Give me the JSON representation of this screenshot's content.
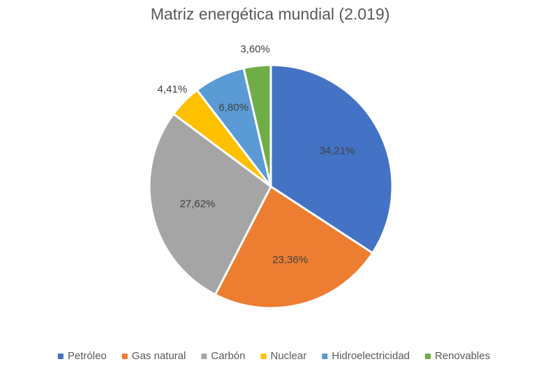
{
  "chart_data": {
    "type": "pie",
    "title": "Matriz energética mundial (2.019)",
    "categories": [
      "Petróleo",
      "Gas natural",
      "Carbón",
      "Nuclear",
      "Hidroelectricidad",
      "Renovables"
    ],
    "values": [
      34.21,
      23.36,
      27.62,
      4.41,
      6.8,
      3.6
    ],
    "labels": [
      "34,21%",
      "23,36%",
      "27,62%",
      "4,41%",
      "6,80%",
      "3,60%"
    ],
    "colors": [
      "#4472c4",
      "#ed7d31",
      "#a5a5a5",
      "#ffc000",
      "#5b9bd5",
      "#70ad47"
    ],
    "legend_position": "bottom"
  }
}
